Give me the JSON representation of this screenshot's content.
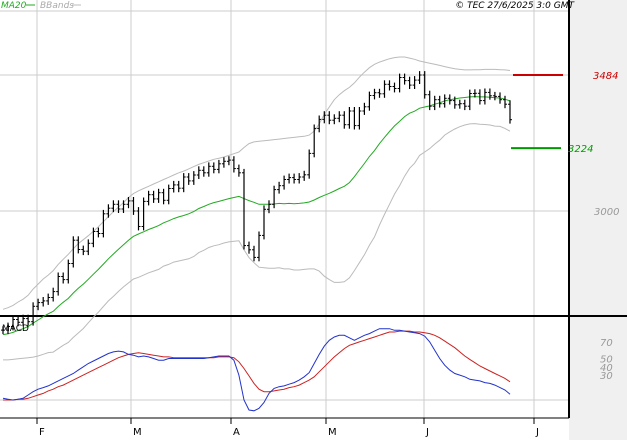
{
  "header": {
    "legend_ma": "MA20",
    "legend_bb": "BBands",
    "copyright": "© TEC 27/6/2025 3:0 GMT"
  },
  "colors": {
    "ma": "#22aa22",
    "bbands": "#bbbbbb",
    "price": "#000000",
    "resistance": "#cc0000",
    "support": "#009900",
    "macd": "#2233cc",
    "signal": "#cc2222",
    "gutter": "#f0f0f0",
    "grid": "#cccccc"
  },
  "chart_data": [
    {
      "type": "ohlc",
      "x_labels": [
        "F",
        "M",
        "A",
        "M",
        "J",
        "J"
      ],
      "y_ticks": [
        {
          "value": 3000,
          "label": "3000"
        }
      ],
      "ylim": [
        2500,
        3700
      ],
      "grid": true,
      "levels": [
        {
          "name": "resistance",
          "value": 3484,
          "label": "3484"
        },
        {
          "name": "support",
          "value": 3224,
          "label": "3224"
        }
      ],
      "legend": [
        "MA20",
        "BBands"
      ],
      "price_close": [
        2576,
        2589,
        2614,
        2604,
        2617,
        2606,
        2661,
        2674,
        2680,
        2692,
        2713,
        2767,
        2756,
        2813,
        2896,
        2863,
        2857,
        2885,
        2927,
        2920,
        2990,
        3010,
        3024,
        3007,
        3024,
        3036,
        3000,
        2945,
        3034,
        3058,
        3043,
        3065,
        3038,
        3080,
        3093,
        3081,
        3121,
        3107,
        3128,
        3145,
        3136,
        3159,
        3148,
        3168,
        3177,
        3181,
        3151,
        3136,
        2877,
        2862,
        2835,
        2913,
        3006,
        3024,
        3076,
        3090,
        3112,
        3119,
        3112,
        3121,
        3129,
        3205,
        3294,
        3326,
        3341,
        3323,
        3330,
        3341,
        3307,
        3356,
        3304,
        3356,
        3371,
        3411,
        3421,
        3417,
        3451,
        3443,
        3436,
        3475,
        3464,
        3448,
        3466,
        3484,
        3414,
        3373,
        3396,
        3382,
        3401,
        3393,
        3378,
        3382,
        3373,
        3418,
        3419,
        3393,
        3422,
        3410,
        3408,
        3396,
        3380,
        3325
      ],
      "ma20": [
        2560,
        2563,
        2568,
        2575,
        2581,
        2589,
        2601,
        2612,
        2624,
        2634,
        2643,
        2660,
        2675,
        2689,
        2708,
        2725,
        2740,
        2757,
        2775,
        2792,
        2811,
        2830,
        2847,
        2864,
        2880,
        2896,
        2910,
        2918,
        2926,
        2934,
        2941,
        2948,
        2958,
        2965,
        2973,
        2979,
        2984,
        2990,
        2998,
        3009,
        3016,
        3024,
        3030,
        3034,
        3039,
        3044,
        3048,
        3052,
        3044,
        3037,
        3031,
        3024,
        3024,
        3024,
        3025,
        3027,
        3026,
        3027,
        3026,
        3027,
        3029,
        3032,
        3039,
        3048,
        3056,
        3063,
        3071,
        3080,
        3088,
        3101,
        3122,
        3146,
        3169,
        3194,
        3215,
        3240,
        3262,
        3283,
        3303,
        3319,
        3336,
        3348,
        3355,
        3366,
        3370,
        3374,
        3380,
        3385,
        3392,
        3396,
        3399,
        3402,
        3404,
        3406,
        3407,
        3406,
        3406,
        3405,
        3403,
        3402,
        3398,
        3392
      ],
      "bb_upper": [
        2650,
        2656,
        2664,
        2676,
        2686,
        2700,
        2722,
        2740,
        2758,
        2772,
        2788,
        2810,
        2828,
        2846,
        2866,
        2884,
        2898,
        2912,
        2928,
        2944,
        2962,
        2980,
        2998,
        3014,
        3030,
        3048,
        3062,
        3072,
        3080,
        3088,
        3096,
        3104,
        3112,
        3120,
        3128,
        3136,
        3142,
        3150,
        3158,
        3166,
        3172,
        3178,
        3184,
        3188,
        3192,
        3198,
        3204,
        3210,
        3226,
        3240,
        3246,
        3248,
        3250,
        3252,
        3254,
        3256,
        3258,
        3260,
        3262,
        3264,
        3266,
        3270,
        3284,
        3310,
        3344,
        3370,
        3396,
        3414,
        3428,
        3440,
        3456,
        3476,
        3494,
        3510,
        3522,
        3530,
        3536,
        3542,
        3546,
        3548,
        3548,
        3544,
        3540,
        3534,
        3530,
        3526,
        3522,
        3518,
        3514,
        3510,
        3506,
        3504,
        3502,
        3502,
        3503,
        3503,
        3504,
        3504,
        3504,
        3503,
        3502,
        3500
      ],
      "bb_lower": [
        2470,
        2470,
        2472,
        2474,
        2476,
        2478,
        2480,
        2484,
        2490,
        2496,
        2498,
        2510,
        2522,
        2532,
        2550,
        2566,
        2582,
        2602,
        2622,
        2640,
        2660,
        2680,
        2696,
        2714,
        2730,
        2744,
        2758,
        2764,
        2772,
        2780,
        2786,
        2792,
        2804,
        2810,
        2818,
        2822,
        2826,
        2830,
        2838,
        2852,
        2860,
        2870,
        2876,
        2880,
        2886,
        2890,
        2892,
        2894,
        2862,
        2834,
        2816,
        2800,
        2798,
        2796,
        2796,
        2798,
        2794,
        2794,
        2790,
        2790,
        2792,
        2794,
        2794,
        2786,
        2768,
        2756,
        2746,
        2746,
        2748,
        2762,
        2788,
        2816,
        2844,
        2878,
        2908,
        2950,
        2988,
        3024,
        3060,
        3090,
        3124,
        3152,
        3170,
        3198,
        3210,
        3222,
        3238,
        3252,
        3270,
        3282,
        3292,
        3300,
        3306,
        3310,
        3311,
        3309,
        3308,
        3306,
        3302,
        3301,
        3294,
        3284
      ]
    },
    {
      "type": "line",
      "title": "MACD",
      "y_ticks": [
        {
          "value": 70,
          "label": "70"
        },
        {
          "value": 50,
          "label": "50"
        },
        {
          "value": 40,
          "label": "40"
        },
        {
          "value": 30,
          "label": "30"
        }
      ],
      "ylim": [
        -25,
        90
      ],
      "grid": true,
      "series": [
        {
          "values": [
            2,
            1,
            0,
            1,
            2,
            6,
            10,
            13,
            15,
            17,
            20,
            23,
            26,
            29,
            32,
            36,
            40,
            44,
            47,
            50,
            53,
            56,
            58,
            59,
            58,
            55,
            54,
            52,
            53,
            52,
            50,
            48,
            48,
            50,
            50,
            50,
            50,
            50,
            50,
            50,
            50,
            51,
            52,
            53,
            53,
            53,
            48,
            30,
            0,
            -12,
            -13,
            -10,
            -3,
            8,
            14,
            16,
            17,
            19,
            21,
            24,
            28,
            33,
            44,
            55,
            65,
            72,
            76,
            78,
            78,
            75,
            72,
            75,
            78,
            80,
            83,
            86,
            86,
            86,
            84,
            84,
            83,
            82,
            81,
            80,
            77,
            70,
            60,
            50,
            42,
            36,
            32,
            30,
            28,
            25,
            24,
            23,
            21,
            20,
            18,
            15,
            12,
            7
          ]
        },
        {
          "values": [
            0,
            0,
            0,
            1,
            1,
            2,
            4,
            6,
            8,
            11,
            13,
            16,
            18,
            21,
            24,
            27,
            30,
            33,
            36,
            39,
            42,
            45,
            48,
            51,
            53,
            55,
            56,
            57,
            56,
            55,
            54,
            53,
            52,
            52,
            51,
            51,
            51,
            51,
            51,
            51,
            51,
            51,
            51,
            52,
            52,
            52,
            51,
            46,
            38,
            29,
            20,
            13,
            10,
            10,
            11,
            12,
            13,
            15,
            16,
            18,
            21,
            24,
            28,
            34,
            40,
            46,
            52,
            57,
            62,
            66,
            68,
            70,
            72,
            74,
            76,
            78,
            80,
            82,
            82,
            83,
            83,
            83,
            82,
            82,
            81,
            80,
            78,
            75,
            71,
            67,
            63,
            58,
            53,
            49,
            45,
            41,
            38,
            35,
            32,
            29,
            26,
            22
          ]
        }
      ]
    }
  ]
}
